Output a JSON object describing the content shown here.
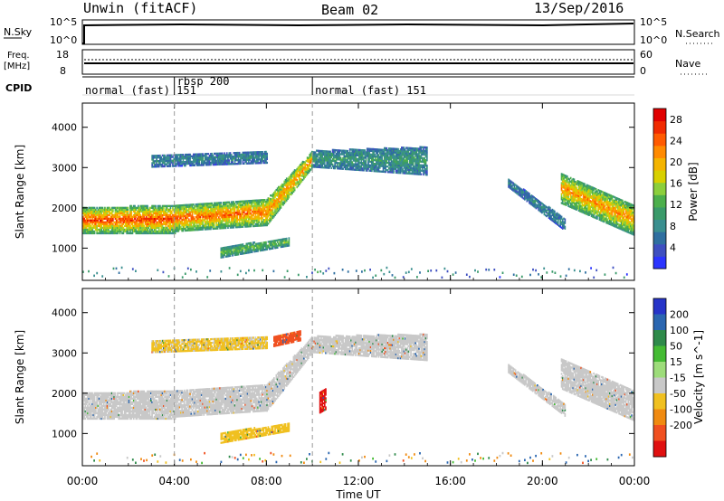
{
  "header": {
    "radar_title": "Unwin (fitACF)",
    "beam": "Beam 02",
    "date": "13/Sep/2016"
  },
  "strip_panels": {
    "nsky": {
      "label": "N.Sky",
      "ticks": [
        "10^5",
        "10^0"
      ],
      "right_ticks": [
        "10^5",
        "10^0"
      ],
      "right_label": "N.Search"
    },
    "freq": {
      "label_lines": [
        "Freq.",
        "[MHz]"
      ],
      "ticks": [
        "18",
        "8"
      ],
      "right_ticks": [
        "60",
        "0"
      ],
      "right_label": "Nave"
    },
    "cpid": {
      "label": "CPID",
      "segments": [
        {
          "label": "normal (fast) 151",
          "start_hour": 0.0,
          "end_hour": 4.0
        },
        {
          "label": "rbsp 200",
          "start_hour": 4.0,
          "end_hour": 10.0
        },
        {
          "label": "normal (fast) 151",
          "start_hour": 10.0,
          "end_hour": 24.0
        }
      ]
    }
  },
  "chart_data": [
    {
      "type": "heatmap",
      "panel": "power",
      "ylabel": "Slant Range [km]",
      "ylim": [
        200,
        4600
      ],
      "yticks": [
        1000,
        2000,
        3000,
        4000
      ],
      "xlim": [
        0,
        24
      ],
      "colorbar": {
        "label": "Power [dB]",
        "tick_values": [
          4,
          8,
          12,
          16,
          20,
          24,
          28
        ],
        "range": [
          0,
          30
        ],
        "colors": [
          "#2b34ff",
          "#3e4fc0",
          "#2f6fa0",
          "#3a8f8f",
          "#3a9a6a",
          "#4caf4c",
          "#8ccf3c",
          "#d8d000",
          "#f4b400",
          "#ff8a00",
          "#ff5a00",
          "#f02a00",
          "#e00000"
        ]
      },
      "bands": [
        {
          "t_start": 0.0,
          "t_end": 4.0,
          "r_low_start": 1350,
          "r_low_end": 1350,
          "r_high_start": 2000,
          "r_high_end": 2050,
          "core_db": 26,
          "edge_db": 10
        },
        {
          "t_start": 4.0,
          "t_end": 8.0,
          "r_low_start": 1400,
          "r_low_end": 1550,
          "r_high_start": 2050,
          "r_high_end": 2200,
          "core_db": 24,
          "edge_db": 10
        },
        {
          "t_start": 8.0,
          "t_end": 10.0,
          "r_low_start": 1550,
          "r_low_end": 3000,
          "r_high_start": 2200,
          "r_high_end": 3400,
          "core_db": 22,
          "edge_db": 12
        },
        {
          "t_start": 10.0,
          "t_end": 15.0,
          "r_low_start": 3000,
          "r_low_end": 2800,
          "r_high_start": 3400,
          "r_high_end": 3500,
          "core_db": 10,
          "edge_db": 6
        },
        {
          "t_start": 6.0,
          "t_end": 9.0,
          "r_low_start": 750,
          "r_low_end": 1050,
          "r_high_start": 1000,
          "r_high_end": 1250,
          "core_db": 14,
          "edge_db": 8
        },
        {
          "t_start": 18.5,
          "t_end": 21.0,
          "r_low_start": 2500,
          "r_low_end": 1400,
          "r_high_start": 2700,
          "r_high_end": 1700,
          "core_db": 8,
          "edge_db": 5
        },
        {
          "t_start": 20.8,
          "t_end": 24.0,
          "r_low_start": 2100,
          "r_low_end": 1300,
          "r_high_start": 2850,
          "r_high_end": 2050,
          "core_db": 22,
          "edge_db": 10
        },
        {
          "t_start": 3.0,
          "t_end": 8.0,
          "r_low_start": 3000,
          "r_low_end": 3100,
          "r_high_start": 3300,
          "r_high_end": 3400,
          "core_db": 8,
          "edge_db": 5
        }
      ]
    },
    {
      "type": "heatmap",
      "panel": "velocity",
      "ylabel": "Slant Range [km]",
      "xlabel": "Time UT",
      "ylim": [
        200,
        4600
      ],
      "yticks": [
        1000,
        2000,
        3000,
        4000
      ],
      "xlim": [
        0,
        24
      ],
      "xticks": [
        "00:00",
        "04:00",
        "08:00",
        "12:00",
        "16:00",
        "20:00",
        "00:00"
      ],
      "colorbar": {
        "label": "Velocity [m s^-1]",
        "tick_labels": [
          "200",
          "100",
          "50",
          "15",
          "-15",
          "-50",
          "-100",
          "-200"
        ],
        "colors": [
          "#2634c8",
          "#2a66b0",
          "#2e8a4a",
          "#44bb33",
          "#9ddc7a",
          "#c8c8c8",
          "#f0c020",
          "#f08a10",
          "#f05020",
          "#e01010"
        ]
      },
      "bands": [
        {
          "t_start": 0.0,
          "t_end": 4.0,
          "r_low_start": 1350,
          "r_low_end": 1350,
          "r_high_start": 2000,
          "r_high_end": 2050,
          "vel": 0
        },
        {
          "t_start": 4.0,
          "t_end": 8.0,
          "r_low_start": 1400,
          "r_low_end": 1550,
          "r_high_start": 2050,
          "r_high_end": 2200,
          "vel": 0
        },
        {
          "t_start": 8.0,
          "t_end": 10.0,
          "r_low_start": 1550,
          "r_low_end": 3000,
          "r_high_start": 2200,
          "r_high_end": 3400,
          "vel": 0
        },
        {
          "t_start": 10.0,
          "t_end": 15.0,
          "r_low_start": 3000,
          "r_low_end": 2800,
          "r_high_start": 3400,
          "r_high_end": 3450,
          "vel": 0
        },
        {
          "t_start": 6.0,
          "t_end": 9.0,
          "r_low_start": 750,
          "r_low_end": 1050,
          "r_high_start": 1000,
          "r_high_end": 1250,
          "vel": -40
        },
        {
          "t_start": 8.3,
          "t_end": 9.5,
          "r_low_start": 3150,
          "r_low_end": 3300,
          "r_high_start": 3400,
          "r_high_end": 3550,
          "vel": -120
        },
        {
          "t_start": 10.3,
          "t_end": 10.6,
          "r_low_start": 1500,
          "r_low_end": 1600,
          "r_high_start": 2000,
          "r_high_end": 2100,
          "vel": -200
        },
        {
          "t_start": 18.5,
          "t_end": 21.0,
          "r_low_start": 2500,
          "r_low_end": 1400,
          "r_high_start": 2700,
          "r_high_end": 1700,
          "vel": 0
        },
        {
          "t_start": 20.8,
          "t_end": 24.0,
          "r_low_start": 2100,
          "r_low_end": 1300,
          "r_high_start": 2850,
          "r_high_end": 2050,
          "vel": 0
        },
        {
          "t_start": 3.0,
          "t_end": 8.0,
          "r_low_start": 3000,
          "r_low_end": 3100,
          "r_high_start": 3300,
          "r_high_end": 3400,
          "vel": -20
        }
      ]
    }
  ]
}
